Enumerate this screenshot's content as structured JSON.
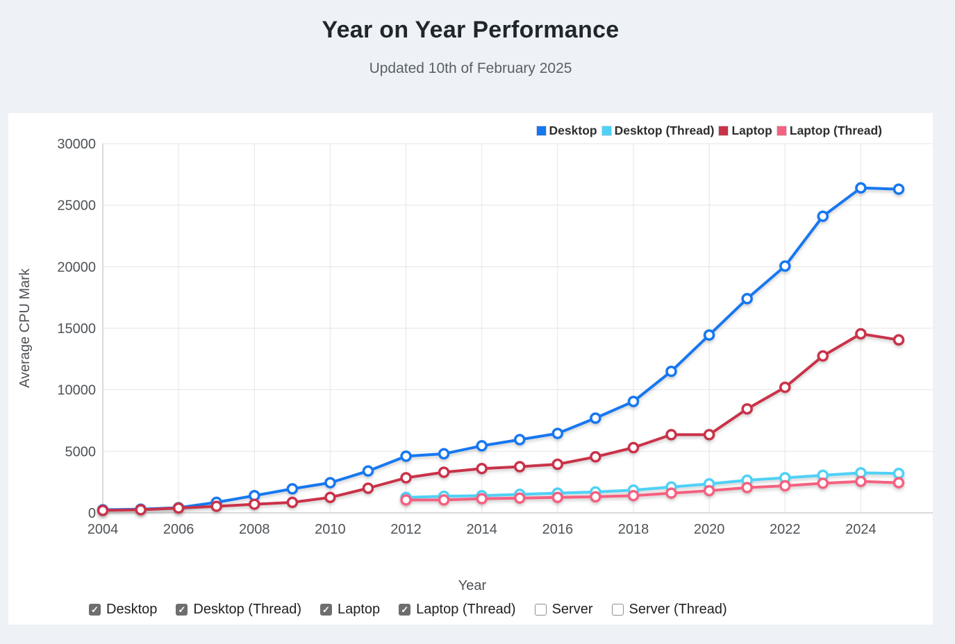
{
  "header": {
    "title": "Year on Year Performance",
    "subtitle": "Updated 10th of February 2025"
  },
  "colors": {
    "page_bg": "#eef2f6",
    "card_bg": "#ffffff",
    "grid": "#e4e4e4",
    "axis_line": "#b6b6b6",
    "tick_text": "#4e5256",
    "title_text": "#1f262d",
    "subtitle_text": "#596066",
    "legend_text": "#2e2e2e",
    "filter_text": "#212121",
    "checkbox_bg": "#6e6e6e",
    "checkbox_border": "#8f8f8f"
  },
  "chart_data": {
    "type": "line",
    "title": "Year on Year Performance",
    "xlabel": "Year",
    "ylabel": "Average CPU Mark",
    "x": [
      2004,
      2005,
      2006,
      2007,
      2008,
      2009,
      2010,
      2011,
      2012,
      2013,
      2014,
      2015,
      2016,
      2017,
      2018,
      2019,
      2020,
      2021,
      2022,
      2023,
      2024,
      2025
    ],
    "x_tick_years": [
      2004,
      2006,
      2008,
      2010,
      2012,
      2014,
      2016,
      2018,
      2020,
      2022,
      2024
    ],
    "y_ticks": [
      0,
      5000,
      10000,
      15000,
      20000,
      25000,
      30000
    ],
    "ylim": [
      0,
      30000
    ],
    "grid": true,
    "legend_position": "top-right",
    "marker": "open-circle",
    "series": [
      {
        "name": "Desktop",
        "color": "#1477f0",
        "values": [
          250,
          300,
          420,
          850,
          1400,
          1950,
          2450,
          3400,
          4600,
          4800,
          5450,
          5950,
          6450,
          7700,
          9050,
          11500,
          14450,
          17400,
          20050,
          24100,
          26400,
          26300
        ]
      },
      {
        "name": "Desktop (Thread)",
        "color": "#4fd1f6",
        "values": [
          null,
          null,
          null,
          null,
          null,
          null,
          null,
          null,
          1250,
          1350,
          1400,
          1500,
          1600,
          1700,
          1850,
          2100,
          2350,
          2650,
          2850,
          3050,
          3250,
          3200
        ]
      },
      {
        "name": "Laptop",
        "color": "#c93349",
        "values": [
          200,
          250,
          390,
          530,
          700,
          850,
          1250,
          2000,
          2850,
          3300,
          3600,
          3750,
          3950,
          4550,
          5300,
          6350,
          6350,
          8450,
          10200,
          12750,
          14550,
          14050
        ]
      },
      {
        "name": "Laptop (Thread)",
        "color": "#f56180",
        "values": [
          null,
          null,
          null,
          null,
          null,
          null,
          null,
          null,
          1050,
          1050,
          1150,
          1200,
          1250,
          1300,
          1400,
          1600,
          1800,
          2050,
          2200,
          2400,
          2550,
          2450
        ]
      }
    ]
  },
  "filters": {
    "items": [
      {
        "label": "Desktop",
        "checked": true
      },
      {
        "label": "Desktop (Thread)",
        "checked": true
      },
      {
        "label": "Laptop",
        "checked": true
      },
      {
        "label": "Laptop (Thread)",
        "checked": true
      },
      {
        "label": "Server",
        "checked": false
      },
      {
        "label": "Server (Thread)",
        "checked": false
      }
    ]
  }
}
